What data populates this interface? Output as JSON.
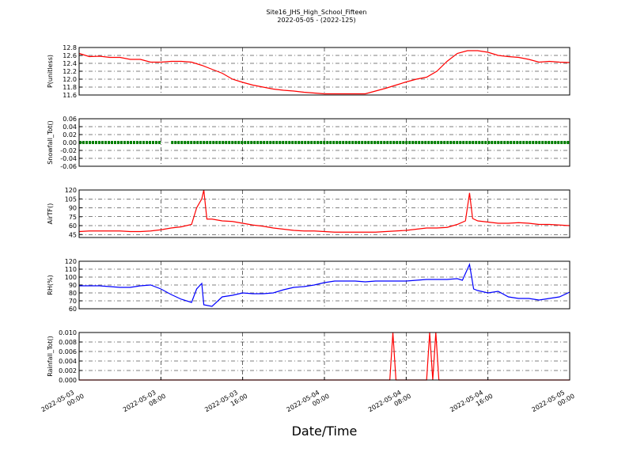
{
  "title": "Site16_JHS_High_School_Fifteen",
  "subtitle": "2022-05-05 - (2022-125)",
  "x_axis": {
    "label": "Date/Time",
    "xlim": [
      "2022-05-03 00:00",
      "2022-05-05 00:00"
    ],
    "xticks": [
      "2022-05-03 00:00",
      "2022-05-03 08:00",
      "2022-05-03 16:00",
      "2022-05-04 00:00",
      "2022-05-04 08:00",
      "2022-05-04 16:00",
      "2022-05-05 00:00"
    ]
  },
  "chart_data": [
    {
      "type": "line",
      "ylabel": "P(unitless)",
      "ylim": [
        11.6,
        12.8
      ],
      "grid": true,
      "yticks": [
        11.6,
        11.8,
        {
          "value": 12,
          "label": "12.0"
        },
        12.2,
        12.4,
        12.6,
        12.8
      ],
      "x": [
        "2022-05-03 00:00",
        "2022-05-03 01:00",
        "2022-05-03 02:00",
        "2022-05-03 03:00",
        "2022-05-03 04:00",
        "2022-05-03 05:00",
        "2022-05-03 06:00",
        "2022-05-03 07:00",
        "2022-05-03 08:00",
        "2022-05-03 09:00",
        "2022-05-03 10:00",
        "2022-05-03 11:00",
        "2022-05-03 12:00",
        "2022-05-03 13:00",
        "2022-05-03 14:00",
        "2022-05-03 15:00",
        "2022-05-03 16:00",
        "2022-05-03 17:00",
        "2022-05-03 18:00",
        "2022-05-03 19:00",
        "2022-05-03 20:00",
        "2022-05-03 21:00",
        "2022-05-03 22:00",
        "2022-05-03 23:00",
        "2022-05-04 00:00",
        "2022-05-04 01:00",
        "2022-05-04 02:00",
        "2022-05-04 03:00",
        "2022-05-04 04:00",
        "2022-05-04 05:00",
        "2022-05-04 06:00",
        "2022-05-04 07:00",
        "2022-05-04 08:00",
        "2022-05-04 09:00",
        "2022-05-04 10:00",
        "2022-05-04 11:00",
        "2022-05-04 12:00",
        "2022-05-04 13:00",
        "2022-05-04 14:00",
        "2022-05-04 15:00",
        "2022-05-04 16:00",
        "2022-05-04 17:00",
        "2022-05-04 18:00",
        "2022-05-04 19:00",
        "2022-05-04 20:00",
        "2022-05-04 21:00",
        "2022-05-04 22:00",
        "2022-05-04 23:00",
        "2022-05-05 00:00"
      ],
      "series": [
        {
          "color": "#ff0000",
          "values": [
            12.65,
            12.57,
            12.58,
            12.55,
            12.55,
            12.5,
            12.5,
            12.43,
            12.43,
            12.45,
            12.45,
            12.43,
            12.35,
            12.25,
            12.15,
            12.0,
            11.92,
            11.85,
            11.8,
            11.75,
            11.72,
            11.7,
            11.67,
            11.65,
            11.63,
            11.63,
            11.63,
            11.63,
            11.63,
            11.7,
            11.77,
            11.85,
            11.93,
            12.0,
            12.05,
            12.2,
            12.45,
            12.65,
            12.72,
            12.72,
            12.68,
            12.6,
            12.57,
            12.55,
            12.5,
            12.43,
            12.45,
            12.43,
            12.42
          ]
        }
      ]
    },
    {
      "type": "line",
      "ylabel": "Snowfall_Tot()",
      "ylim": [
        -0.06,
        0.06
      ],
      "grid": true,
      "yticks": [
        -0.06,
        -0.04,
        -0.02,
        {
          "value": 0,
          "label": "0.00"
        },
        0.02,
        0.04,
        0.06
      ],
      "x": [
        "2022-05-03 00:00",
        "2022-05-03 08:00",
        "2022-05-03 08:30",
        "2022-05-03 09:00",
        "2022-05-05 00:00"
      ],
      "series": [
        {
          "color": "#008000",
          "marker": "o",
          "values": [
            0,
            0,
            null,
            0,
            0
          ]
        }
      ]
    },
    {
      "type": "line",
      "ylabel": "AirTF()",
      "ylim": [
        40,
        120
      ],
      "grid": true,
      "yticks": [
        45,
        60,
        75,
        90,
        105,
        120
      ],
      "x": [
        "2022-05-03 00:00",
        "2022-05-03 01:00",
        "2022-05-03 02:00",
        "2022-05-03 03:00",
        "2022-05-03 04:00",
        "2022-05-03 05:00",
        "2022-05-03 06:00",
        "2022-05-03 07:00",
        "2022-05-03 08:00",
        "2022-05-03 09:00",
        "2022-05-03 10:00",
        "2022-05-03 11:00",
        "2022-05-03 11:30",
        "2022-05-03 12:00",
        "2022-05-03 12:12",
        "2022-05-03 12:30",
        "2022-05-03 13:00",
        "2022-05-03 14:00",
        "2022-05-03 15:00",
        "2022-05-03 16:00",
        "2022-05-03 17:00",
        "2022-05-03 18:00",
        "2022-05-03 19:00",
        "2022-05-03 20:00",
        "2022-05-03 21:00",
        "2022-05-03 22:00",
        "2022-05-03 23:00",
        "2022-05-04 00:00",
        "2022-05-04 01:00",
        "2022-05-04 02:00",
        "2022-05-04 03:00",
        "2022-05-04 04:00",
        "2022-05-04 05:00",
        "2022-05-04 06:00",
        "2022-05-04 07:00",
        "2022-05-04 08:00",
        "2022-05-04 09:00",
        "2022-05-04 10:00",
        "2022-05-04 11:00",
        "2022-05-04 12:00",
        "2022-05-04 13:00",
        "2022-05-04 13:48",
        "2022-05-04 14:12",
        "2022-05-04 14:30",
        "2022-05-04 15:00",
        "2022-05-04 16:00",
        "2022-05-04 17:00",
        "2022-05-04 18:00",
        "2022-05-04 19:00",
        "2022-05-04 20:00",
        "2022-05-04 21:00",
        "2022-05-04 22:00",
        "2022-05-04 23:00",
        "2022-05-05 00:00"
      ],
      "series": [
        {
          "color": "#ff0000",
          "values": [
            50,
            51,
            51,
            51,
            51,
            50,
            50,
            51,
            53,
            56,
            58,
            62,
            90,
            105,
            120,
            71,
            71,
            68,
            67,
            64,
            61,
            59,
            56,
            54,
            52,
            51,
            51,
            50,
            49,
            49,
            49,
            49,
            49,
            50,
            51,
            52,
            54,
            56,
            56,
            57,
            62,
            68,
            115,
            72,
            68,
            66,
            64,
            64,
            65,
            64,
            62,
            62,
            61,
            60
          ]
        }
      ]
    },
    {
      "type": "line",
      "ylabel": "RH(%)",
      "ylim": [
        60,
        120
      ],
      "grid": true,
      "yticks": [
        60,
        70,
        80,
        90,
        100,
        110,
        120
      ],
      "x": [
        "2022-05-03 00:00",
        "2022-05-03 01:00",
        "2022-05-03 02:00",
        "2022-05-03 03:00",
        "2022-05-03 04:00",
        "2022-05-03 05:00",
        "2022-05-03 06:00",
        "2022-05-03 07:00",
        "2022-05-03 08:00",
        "2022-05-03 09:00",
        "2022-05-03 10:00",
        "2022-05-03 11:00",
        "2022-05-03 11:30",
        "2022-05-03 12:00",
        "2022-05-03 12:12",
        "2022-05-03 13:00",
        "2022-05-03 14:00",
        "2022-05-03 15:00",
        "2022-05-03 16:00",
        "2022-05-03 17:00",
        "2022-05-03 18:00",
        "2022-05-03 19:00",
        "2022-05-03 20:00",
        "2022-05-03 21:00",
        "2022-05-03 22:00",
        "2022-05-03 23:00",
        "2022-05-04 00:00",
        "2022-05-04 01:00",
        "2022-05-04 02:00",
        "2022-05-04 03:00",
        "2022-05-04 04:00",
        "2022-05-04 05:00",
        "2022-05-04 06:00",
        "2022-05-04 07:00",
        "2022-05-04 08:00",
        "2022-05-04 09:00",
        "2022-05-04 10:00",
        "2022-05-04 11:00",
        "2022-05-04 12:00",
        "2022-05-04 13:00",
        "2022-05-04 13:30",
        "2022-05-04 14:12",
        "2022-05-04 14:36",
        "2022-05-04 15:00",
        "2022-05-04 16:00",
        "2022-05-04 17:00",
        "2022-05-04 18:00",
        "2022-05-04 19:00",
        "2022-05-04 20:00",
        "2022-05-04 21:00",
        "2022-05-04 22:00",
        "2022-05-04 23:00",
        "2022-05-05 00:00"
      ],
      "series": [
        {
          "color": "#0000ff",
          "values": [
            89,
            89,
            89,
            88,
            87,
            87,
            89,
            90,
            85,
            78,
            72,
            68,
            85,
            92,
            65,
            63,
            75,
            77,
            80,
            79,
            79,
            80,
            84,
            87,
            88,
            90,
            93,
            95,
            95,
            95,
            94,
            95,
            95,
            95,
            95,
            96,
            97,
            97,
            97,
            98,
            96,
            116,
            85,
            83,
            80,
            82,
            75,
            73,
            73,
            71,
            73,
            75,
            81
          ]
        }
      ]
    },
    {
      "type": "line",
      "ylabel": "Rainfall_Tot()",
      "ylim": [
        0,
        0.01
      ],
      "grid": true,
      "yticks": [
        {
          "value": 0,
          "label": "0.000"
        },
        0.002,
        0.004,
        0.006,
        0.008,
        {
          "value": 0.01,
          "label": "0.010"
        }
      ],
      "x": [
        "2022-05-03 00:00",
        "2022-05-04 06:24",
        "2022-05-04 06:42",
        "2022-05-04 07:00",
        "2022-05-04 10:00",
        "2022-05-04 10:18",
        "2022-05-04 10:36",
        "2022-05-04 10:54",
        "2022-05-04 11:12",
        "2022-05-05 00:00"
      ],
      "series": [
        {
          "color": "#ff0000",
          "values": [
            0,
            0,
            0.01,
            0,
            0,
            0.01,
            0,
            0.01,
            0,
            0
          ]
        }
      ]
    }
  ]
}
